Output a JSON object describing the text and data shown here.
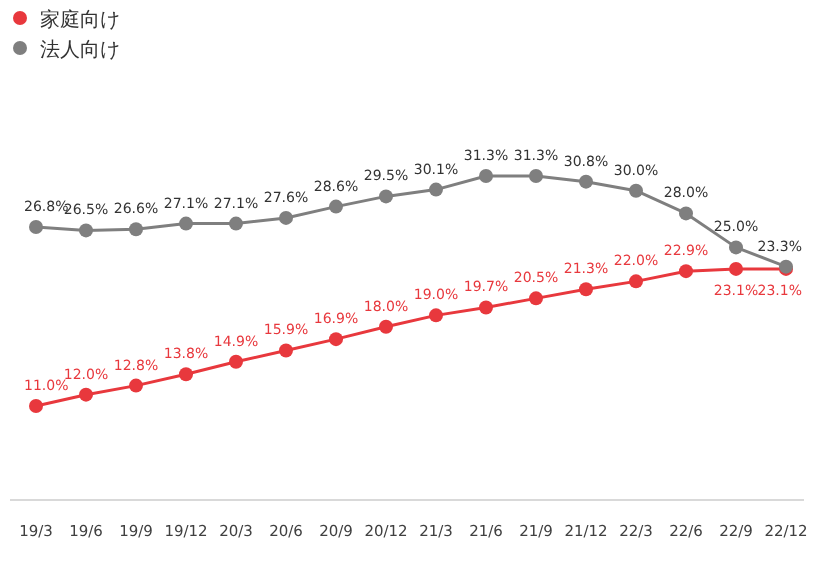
{
  "chart_data": {
    "type": "line",
    "legend": "top left",
    "marker": "circle",
    "categories": [
      "19/3",
      "19/6",
      "19/9",
      "19/12",
      "20/3",
      "20/6",
      "20/9",
      "20/12",
      "21/3",
      "21/6",
      "21/9",
      "21/12",
      "22/3",
      "22/6",
      "22/9",
      "22/12"
    ],
    "series": [
      {
        "name": "家庭向け",
        "color": "#e8383d",
        "values": [
          11.0,
          12.0,
          12.8,
          13.8,
          14.9,
          15.9,
          16.9,
          18.0,
          19.0,
          19.7,
          20.5,
          21.3,
          22.0,
          22.9,
          23.1,
          23.1
        ],
        "value_labels": [
          "11.0%",
          "12.0%",
          "12.8%",
          "13.8%",
          "14.9%",
          "15.9%",
          "16.9%",
          "18.0%",
          "19.0%",
          "19.7%",
          "20.5%",
          "21.3%",
          "22.0%",
          "22.9%",
          "23.1%",
          "23.1%"
        ]
      },
      {
        "name": "法人向け",
        "color": "#7f7f7f",
        "values": [
          26.8,
          26.5,
          26.6,
          27.1,
          27.1,
          27.6,
          28.6,
          29.5,
          30.1,
          31.3,
          31.3,
          30.8,
          30.0,
          28.0,
          25.0,
          23.3
        ],
        "value_labels": [
          "26.8%",
          "26.5%",
          "26.6%",
          "27.1%",
          "27.1%",
          "27.6%",
          "28.6%",
          "29.5%",
          "30.1%",
          "31.3%",
          "31.3%",
          "30.8%",
          "30.0%",
          "28.0%",
          "25.0%",
          "23.3%"
        ]
      }
    ]
  }
}
